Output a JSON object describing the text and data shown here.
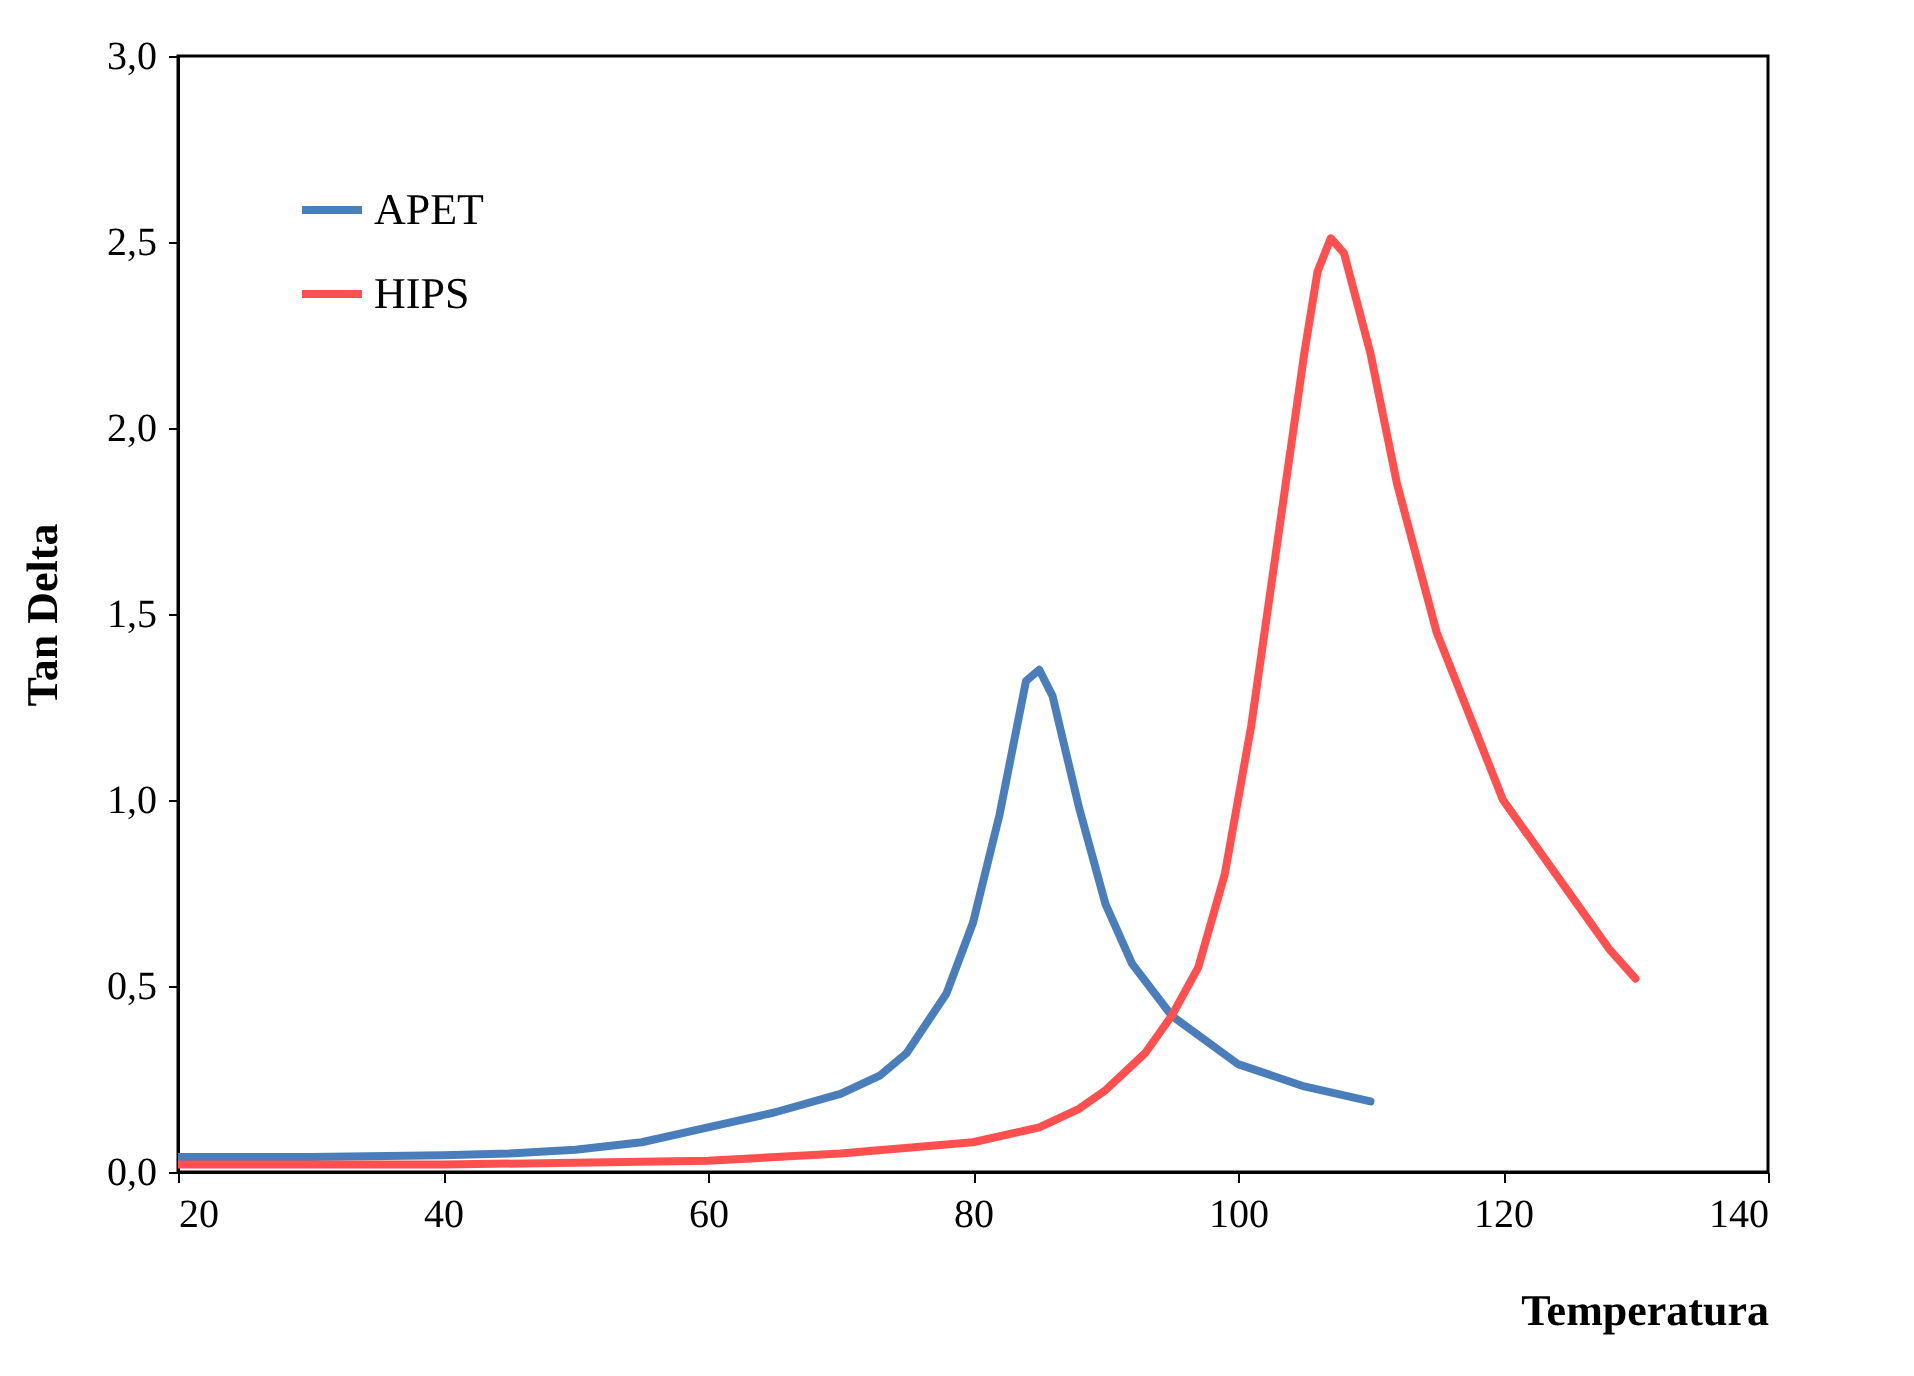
{
  "chart_data": {
    "type": "line",
    "xlabel": "Temperatura",
    "ylabel": "Tan Delta",
    "xlim": [
      20,
      140
    ],
    "ylim": [
      0,
      3
    ],
    "xticks": [
      20,
      40,
      60,
      80,
      100,
      120,
      140
    ],
    "yticks": [
      {
        "value": 0,
        "label": "0,0"
      },
      {
        "value": 0.5,
        "label": "0,5"
      },
      {
        "value": 1,
        "label": "1,0"
      },
      {
        "value": 1.5,
        "label": "1,5"
      },
      {
        "value": 2,
        "label": "2,0"
      },
      {
        "value": 2.5,
        "label": "2,5"
      },
      {
        "value": 3,
        "label": "3,0"
      }
    ],
    "grid": false,
    "legend": "top left",
    "marker": "none",
    "line_style": "solid",
    "series": [
      {
        "name": "APET",
        "color": "#4a7ebb",
        "x": [
          20,
          30,
          40,
          45,
          50,
          55,
          60,
          65,
          70,
          73,
          75,
          78,
          80,
          82,
          84,
          85,
          86,
          88,
          90,
          92,
          95,
          100,
          105,
          110
        ],
        "values": [
          0.04,
          0.04,
          0.045,
          0.05,
          0.06,
          0.08,
          0.12,
          0.16,
          0.21,
          0.26,
          0.32,
          0.48,
          0.67,
          0.96,
          1.32,
          1.35,
          1.28,
          0.98,
          0.72,
          0.56,
          0.42,
          0.29,
          0.23,
          0.19
        ]
      },
      {
        "name": "HIPS",
        "color": "#ff4f4f",
        "x": [
          20,
          40,
          60,
          70,
          80,
          85,
          88,
          90,
          93,
          95,
          97,
          99,
          101,
          103,
          105,
          106,
          107,
          108,
          110,
          112,
          115,
          118,
          120,
          123,
          126,
          128,
          130
        ],
        "values": [
          0.02,
          0.02,
          0.03,
          0.05,
          0.08,
          0.12,
          0.17,
          0.22,
          0.32,
          0.42,
          0.55,
          0.8,
          1.2,
          1.7,
          2.2,
          2.42,
          2.51,
          2.47,
          2.2,
          1.85,
          1.45,
          1.18,
          1.0,
          0.85,
          0.7,
          0.6,
          0.52
        ]
      }
    ]
  }
}
